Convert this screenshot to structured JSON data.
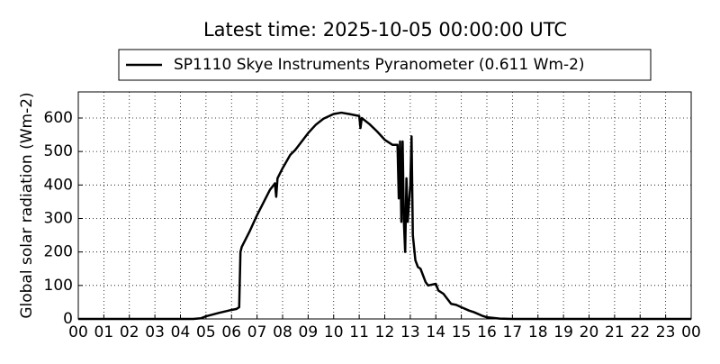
{
  "chart_data": {
    "type": "line",
    "title": "Latest time: 2025-10-05 00:00:00 UTC",
    "y_label": "Global solar radiation (Wm-2)",
    "grid": true,
    "legend": "top",
    "xlim": [
      0,
      24
    ],
    "ylim": [
      0,
      678
    ],
    "xticks": [
      {
        "value": 0,
        "label": "00"
      },
      {
        "value": 1,
        "label": "01"
      },
      {
        "value": 2,
        "label": "02"
      },
      {
        "value": 3,
        "label": "03"
      },
      {
        "value": 4,
        "label": "04"
      },
      {
        "value": 5,
        "label": "05"
      },
      {
        "value": 6,
        "label": "06"
      },
      {
        "value": 7,
        "label": "07"
      },
      {
        "value": 8,
        "label": "08"
      },
      {
        "value": 9,
        "label": "09"
      },
      {
        "value": 10,
        "label": "10"
      },
      {
        "value": 11,
        "label": "11"
      },
      {
        "value": 12,
        "label": "12"
      },
      {
        "value": 13,
        "label": "13"
      },
      {
        "value": 14,
        "label": "14"
      },
      {
        "value": 15,
        "label": "15"
      },
      {
        "value": 16,
        "label": "16"
      },
      {
        "value": 17,
        "label": "17"
      },
      {
        "value": 18,
        "label": "18"
      },
      {
        "value": 19,
        "label": "19"
      },
      {
        "value": 20,
        "label": "20"
      },
      {
        "value": 21,
        "label": "21"
      },
      {
        "value": 22,
        "label": "22"
      },
      {
        "value": 23,
        "label": "23"
      },
      {
        "value": 24,
        "label": "00"
      }
    ],
    "yticks": [
      0,
      100,
      200,
      300,
      400,
      500,
      600
    ],
    "x": [
      0,
      4.5,
      4.8,
      5,
      5.5,
      6,
      6.2,
      6.3,
      6.35,
      6.4,
      6.7,
      7,
      7.3,
      7.5,
      7.7,
      7.75,
      7.8,
      8,
      8.3,
      8.5,
      8.7,
      9,
      9.3,
      9.6,
      10,
      10.3,
      10.6,
      11,
      11.05,
      11.1,
      11.4,
      11.7,
      12,
      12.3,
      12.5,
      12.55,
      12.6,
      12.65,
      12.7,
      12.75,
      12.8,
      12.85,
      12.9,
      13,
      13.05,
      13.1,
      13.2,
      13.3,
      13.4,
      13.6,
      13.7,
      14,
      14.1,
      14.3,
      14.4,
      14.6,
      14.8,
      15,
      15.3,
      15.5,
      15.8,
      16,
      16.5,
      17,
      24
    ],
    "series": [
      {
        "name": "SP1110 Skye Instruments Pyranometer (0.611 Wm-2)",
        "color": "#000000",
        "values": [
          0,
          0,
          2,
          8,
          18,
          27,
          30,
          35,
          200,
          215,
          260,
          310,
          355,
          385,
          405,
          365,
          420,
          450,
          490,
          505,
          525,
          555,
          580,
          598,
          612,
          616,
          612,
          606,
          570,
          600,
          582,
          560,
          535,
          520,
          520,
          360,
          530,
          290,
          530,
          290,
          200,
          420,
          290,
          400,
          545,
          250,
          175,
          155,
          150,
          110,
          100,
          105,
          85,
          75,
          65,
          45,
          42,
          35,
          25,
          20,
          10,
          5,
          1,
          0,
          0
        ]
      }
    ]
  }
}
